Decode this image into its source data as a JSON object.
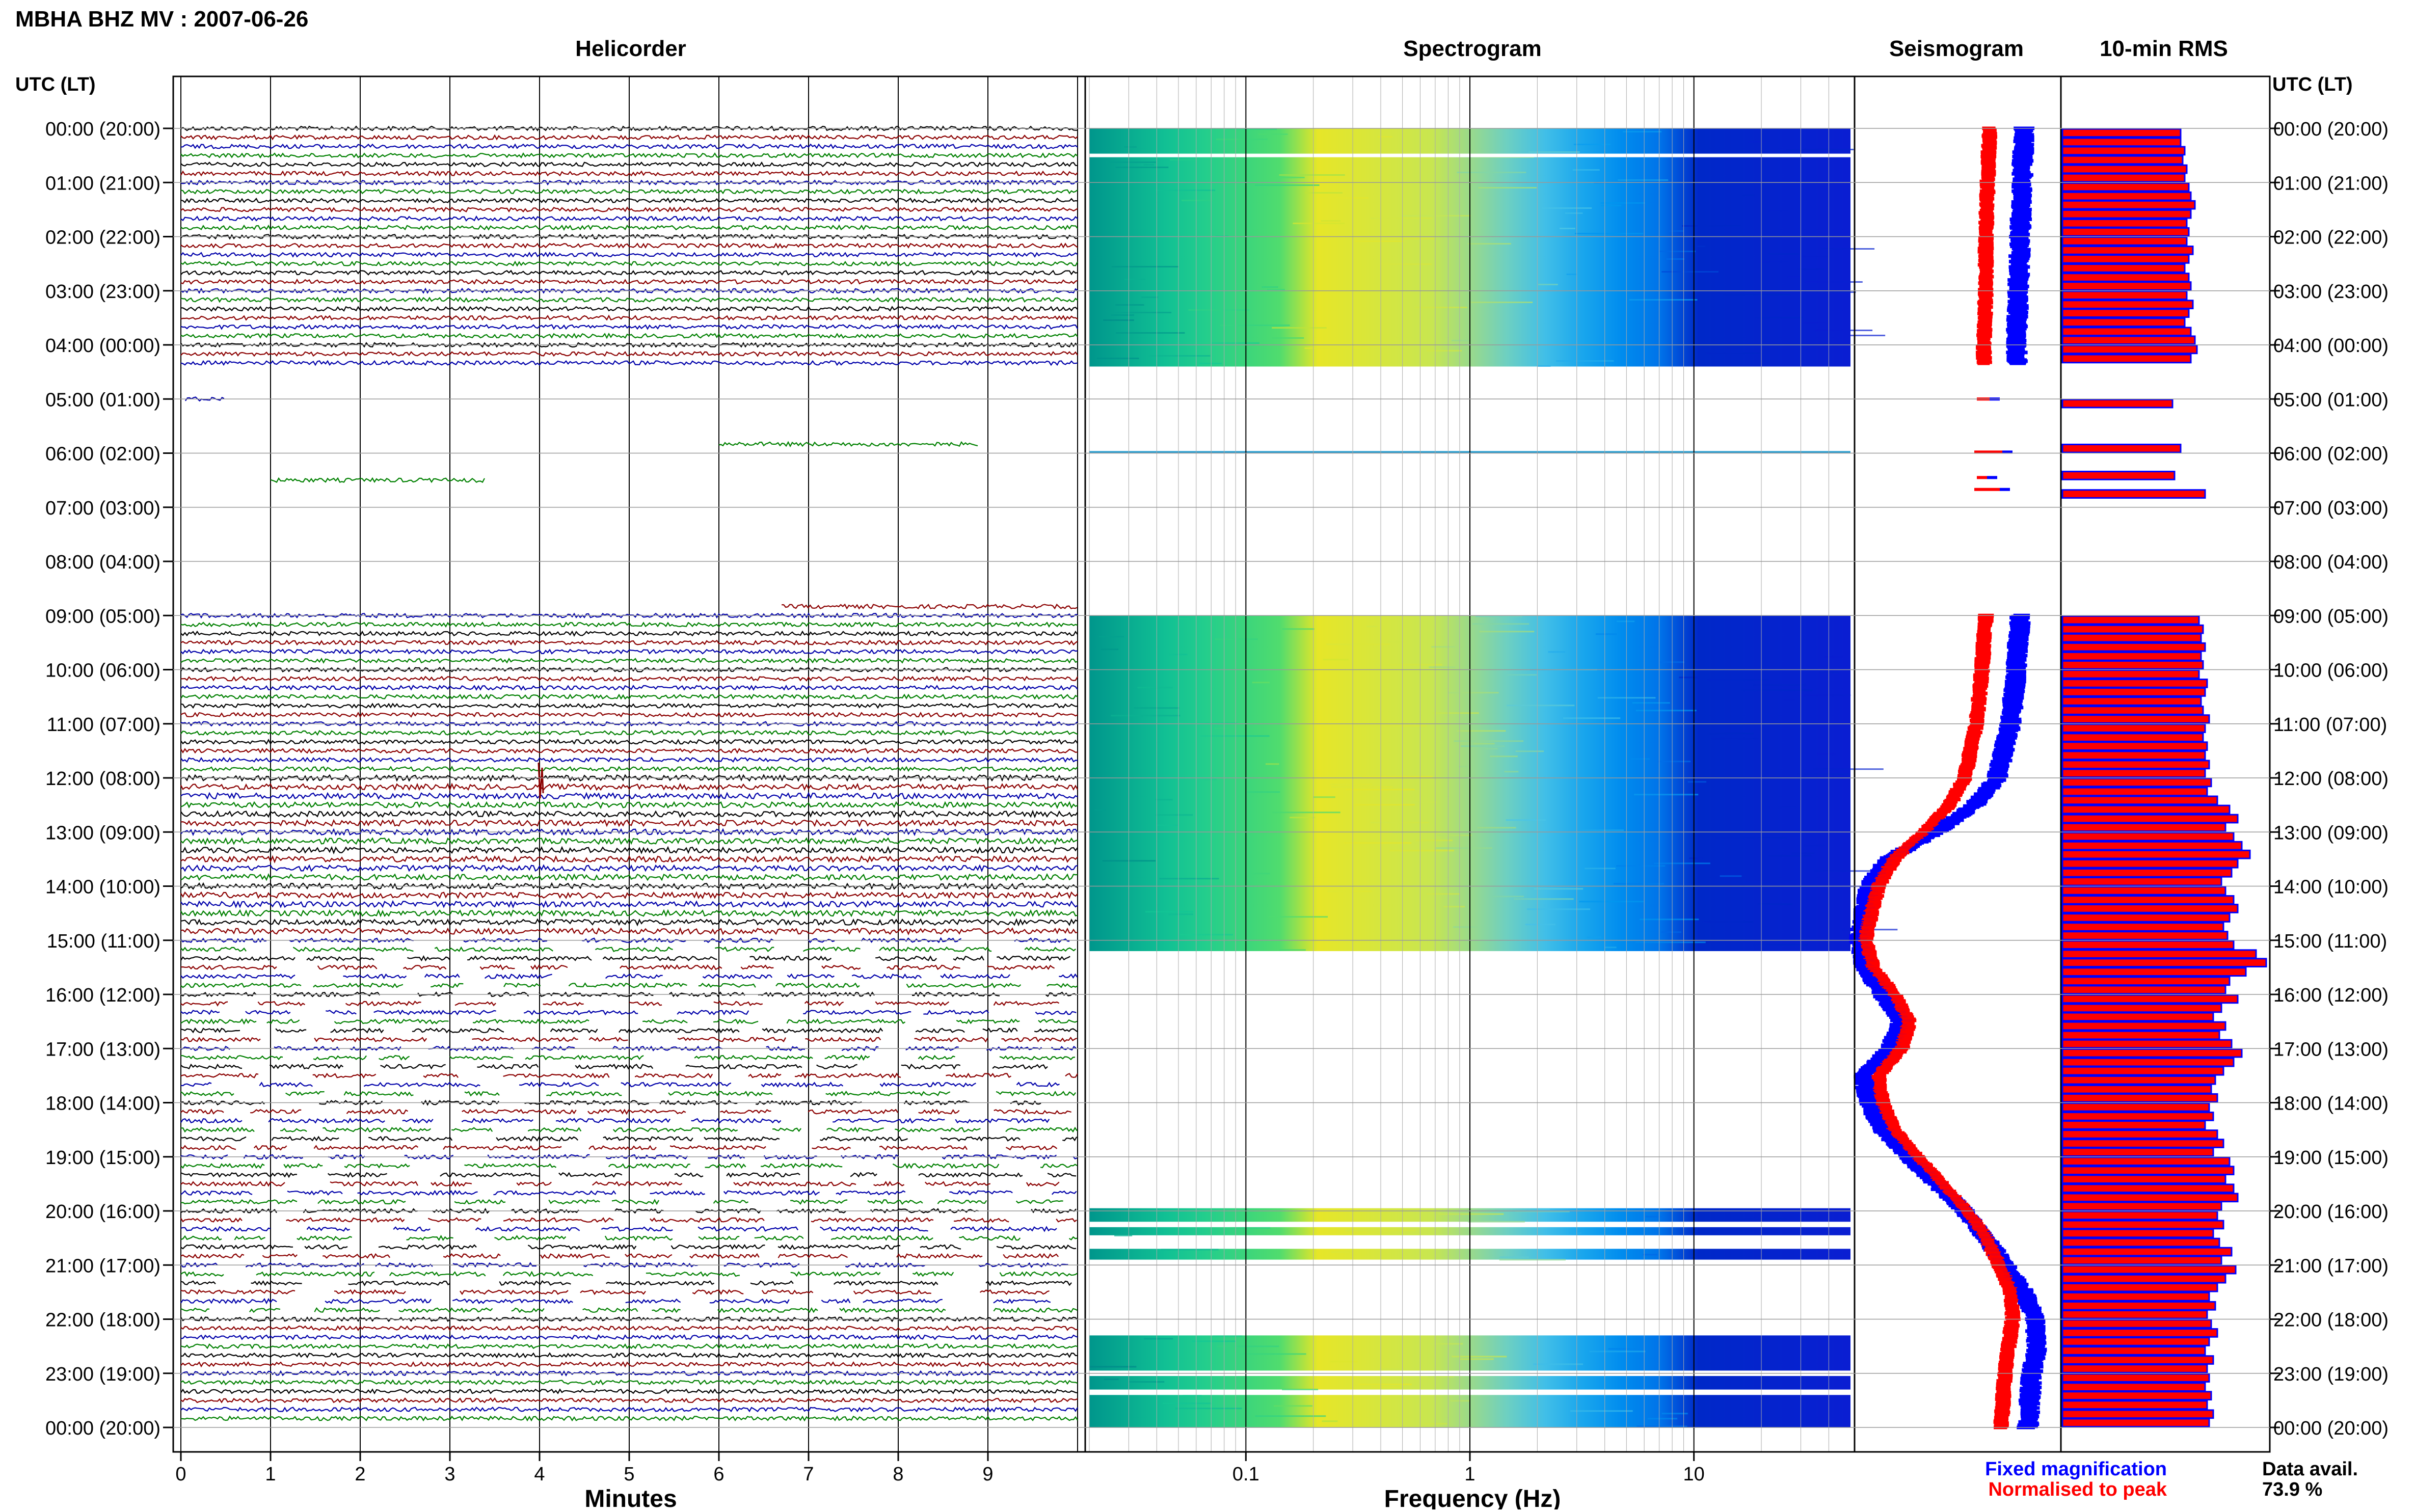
{
  "header": {
    "station_title": "MBHA BHZ MV : 2007-06-26",
    "utc_label": "UTC (LT)",
    "utc_label_right": "UTC (LT)"
  },
  "panels": {
    "helicorder": "Helicorder",
    "spectrogram": "Spectrogram",
    "seismogram": "Seismogram",
    "rms": "10-min RMS"
  },
  "axes": {
    "minutes_label": "Minutes",
    "frequency_label": "Frequency (Hz)",
    "minute_ticks": [
      "0",
      "1",
      "2",
      "3",
      "4",
      "5",
      "6",
      "7",
      "8",
      "9"
    ],
    "frequency_ticks": [
      "0.1",
      "1",
      "10"
    ]
  },
  "time_labels": [
    "00:00 (20:00)",
    "01:00 (21:00)",
    "02:00 (22:00)",
    "03:00 (23:00)",
    "04:00 (00:00)",
    "05:00 (01:00)",
    "06:00 (02:00)",
    "07:00 (03:00)",
    "08:00 (04:00)",
    "09:00 (05:00)",
    "10:00 (06:00)",
    "11:00 (07:00)",
    "12:00 (08:00)",
    "13:00 (09:00)",
    "14:00 (10:00)",
    "15:00 (11:00)",
    "16:00 (12:00)",
    "17:00 (13:00)",
    "18:00 (14:00)",
    "19:00 (15:00)",
    "20:00 (16:00)",
    "21:00 (17:00)",
    "22:00 (18:00)",
    "23:00 (19:00)",
    "00:00 (20:00)"
  ],
  "legend": {
    "fixed": "Fixed magnification",
    "normalised": "Normalised to peak",
    "fixed_color": "#0000ff",
    "normalised_color": "#ff0000"
  },
  "data_availability": {
    "label": "Data avail.",
    "value": "73.9 %"
  },
  "colors": {
    "trace_cycle": [
      "#000000",
      "#8b0000",
      "#0000aa",
      "#008000"
    ],
    "rms_fill": "#ff0000",
    "rms_edge": "#0000ff"
  },
  "chart_data": {
    "type": "heatmap",
    "helicorder": {
      "minutes_per_line": 10,
      "xlabel": "Minutes",
      "xlim": [
        0,
        10
      ],
      "coverage_notes": "continuous 00:00-04:20 UTC and 09:00-24:00 UTC; sparse 04:20-09:00; gappy traces 15:00-22:00"
    },
    "spectrogram": {
      "xlabel": "Frequency (Hz)",
      "xscale": "log",
      "xlim": [
        0.02,
        50
      ],
      "data_segments_utc_hours": [
        [
          0,
          4.4
        ],
        [
          9,
          15.2
        ],
        [
          19.95,
          20.2
        ],
        [
          20.3,
          20.45
        ],
        [
          20.7,
          20.9
        ],
        [
          22.3,
          22.95
        ],
        [
          23.05,
          23.3
        ],
        [
          23.4,
          24
        ]
      ]
    },
    "rms_10min": {
      "units": "relative",
      "intervals": [
        {
          "t": 0.0,
          "v": 0.58
        },
        {
          "t": 0.17,
          "v": 0.58
        },
        {
          "t": 0.33,
          "v": 0.6
        },
        {
          "t": 0.5,
          "v": 0.59
        },
        {
          "t": 0.67,
          "v": 0.61
        },
        {
          "t": 0.83,
          "v": 0.6
        },
        {
          "t": 1.0,
          "v": 0.62
        },
        {
          "t": 1.17,
          "v": 0.63
        },
        {
          "t": 1.33,
          "v": 0.65
        },
        {
          "t": 1.5,
          "v": 0.63
        },
        {
          "t": 1.67,
          "v": 0.61
        },
        {
          "t": 1.83,
          "v": 0.62
        },
        {
          "t": 2.0,
          "v": 0.61
        },
        {
          "t": 2.17,
          "v": 0.64
        },
        {
          "t": 2.33,
          "v": 0.62
        },
        {
          "t": 2.5,
          "v": 0.6
        },
        {
          "t": 2.67,
          "v": 0.62
        },
        {
          "t": 2.83,
          "v": 0.63
        },
        {
          "t": 3.0,
          "v": 0.61
        },
        {
          "t": 3.17,
          "v": 0.64
        },
        {
          "t": 3.33,
          "v": 0.62
        },
        {
          "t": 3.5,
          "v": 0.6
        },
        {
          "t": 3.67,
          "v": 0.63
        },
        {
          "t": 3.83,
          "v": 0.65
        },
        {
          "t": 4.0,
          "v": 0.66
        },
        {
          "t": 4.17,
          "v": 0.63
        },
        {
          "t": 5.0,
          "v": 0.54
        },
        {
          "t": 5.83,
          "v": 0.58
        },
        {
          "t": 6.33,
          "v": 0.55
        },
        {
          "t": 6.67,
          "v": 0.7
        },
        {
          "t": 9.0,
          "v": 0.67
        },
        {
          "t": 9.17,
          "v": 0.69
        },
        {
          "t": 9.33,
          "v": 0.68
        },
        {
          "t": 9.5,
          "v": 0.7
        },
        {
          "t": 9.67,
          "v": 0.68
        },
        {
          "t": 9.83,
          "v": 0.69
        },
        {
          "t": 10.0,
          "v": 0.67
        },
        {
          "t": 10.17,
          "v": 0.71
        },
        {
          "t": 10.33,
          "v": 0.7
        },
        {
          "t": 10.5,
          "v": 0.68
        },
        {
          "t": 10.67,
          "v": 0.69
        },
        {
          "t": 10.83,
          "v": 0.72
        },
        {
          "t": 11.0,
          "v": 0.7
        },
        {
          "t": 11.17,
          "v": 0.69
        },
        {
          "t": 11.33,
          "v": 0.71
        },
        {
          "t": 11.5,
          "v": 0.7
        },
        {
          "t": 11.67,
          "v": 0.72
        },
        {
          "t": 11.83,
          "v": 0.7
        },
        {
          "t": 12.0,
          "v": 0.73
        },
        {
          "t": 12.17,
          "v": 0.71
        },
        {
          "t": 12.33,
          "v": 0.76
        },
        {
          "t": 12.5,
          "v": 0.82
        },
        {
          "t": 12.67,
          "v": 0.86
        },
        {
          "t": 12.83,
          "v": 0.8
        },
        {
          "t": 13.0,
          "v": 0.84
        },
        {
          "t": 13.17,
          "v": 0.88
        },
        {
          "t": 13.33,
          "v": 0.92
        },
        {
          "t": 13.5,
          "v": 0.86
        },
        {
          "t": 13.67,
          "v": 0.83
        },
        {
          "t": 13.83,
          "v": 0.78
        },
        {
          "t": 14.0,
          "v": 0.8
        },
        {
          "t": 14.17,
          "v": 0.84
        },
        {
          "t": 14.33,
          "v": 0.86
        },
        {
          "t": 14.5,
          "v": 0.82
        },
        {
          "t": 14.67,
          "v": 0.79
        },
        {
          "t": 14.83,
          "v": 0.81
        },
        {
          "t": 15.0,
          "v": 0.84
        },
        {
          "t": 15.17,
          "v": 0.95
        },
        {
          "t": 15.33,
          "v": 1.0
        },
        {
          "t": 15.5,
          "v": 0.9
        },
        {
          "t": 15.67,
          "v": 0.82
        },
        {
          "t": 15.83,
          "v": 0.8
        },
        {
          "t": 16.0,
          "v": 0.86
        },
        {
          "t": 16.17,
          "v": 0.78
        },
        {
          "t": 16.33,
          "v": 0.74
        },
        {
          "t": 16.5,
          "v": 0.8
        },
        {
          "t": 16.67,
          "v": 0.77
        },
        {
          "t": 16.83,
          "v": 0.83
        },
        {
          "t": 17.0,
          "v": 0.88
        },
        {
          "t": 17.17,
          "v": 0.84
        },
        {
          "t": 17.33,
          "v": 0.79
        },
        {
          "t": 17.5,
          "v": 0.75
        },
        {
          "t": 17.67,
          "v": 0.73
        },
        {
          "t": 17.83,
          "v": 0.76
        },
        {
          "t": 18.0,
          "v": 0.72
        },
        {
          "t": 18.17,
          "v": 0.74
        },
        {
          "t": 18.33,
          "v": 0.7
        },
        {
          "t": 18.5,
          "v": 0.76
        },
        {
          "t": 18.67,
          "v": 0.79
        },
        {
          "t": 18.83,
          "v": 0.74
        },
        {
          "t": 19.0,
          "v": 0.82
        },
        {
          "t": 19.17,
          "v": 0.84
        },
        {
          "t": 19.33,
          "v": 0.8
        },
        {
          "t": 19.5,
          "v": 0.84
        },
        {
          "t": 19.67,
          "v": 0.86
        },
        {
          "t": 19.83,
          "v": 0.78
        },
        {
          "t": 20.0,
          "v": 0.76
        },
        {
          "t": 20.17,
          "v": 0.79
        },
        {
          "t": 20.33,
          "v": 0.74
        },
        {
          "t": 20.5,
          "v": 0.77
        },
        {
          "t": 20.67,
          "v": 0.83
        },
        {
          "t": 20.83,
          "v": 0.78
        },
        {
          "t": 21.0,
          "v": 0.85
        },
        {
          "t": 21.17,
          "v": 0.8
        },
        {
          "t": 21.33,
          "v": 0.76
        },
        {
          "t": 21.5,
          "v": 0.72
        },
        {
          "t": 21.67,
          "v": 0.75
        },
        {
          "t": 21.83,
          "v": 0.71
        },
        {
          "t": 22.0,
          "v": 0.73
        },
        {
          "t": 22.17,
          "v": 0.76
        },
        {
          "t": 22.33,
          "v": 0.72
        },
        {
          "t": 22.5,
          "v": 0.7
        },
        {
          "t": 22.67,
          "v": 0.74
        },
        {
          "t": 22.83,
          "v": 0.71
        },
        {
          "t": 23.0,
          "v": 0.72
        },
        {
          "t": 23.17,
          "v": 0.7
        },
        {
          "t": 23.33,
          "v": 0.73
        },
        {
          "t": 23.5,
          "v": 0.71
        },
        {
          "t": 23.67,
          "v": 0.74
        },
        {
          "t": 23.83,
          "v": 0.72
        }
      ]
    },
    "seismogram_envelope": {
      "description": "low-frequency trend per hour, normalised",
      "hours": [
        0,
        1,
        2,
        3,
        4,
        9,
        10,
        11,
        12,
        12.5,
        13,
        13.5,
        14,
        14.5,
        15,
        15.5,
        16,
        16.5,
        17,
        17.5,
        18,
        18.5,
        19,
        19.5,
        20,
        20.5,
        21,
        21.5,
        22,
        22.5,
        23,
        23.5,
        24
      ],
      "fixed": [
        0.86,
        0.85,
        0.84,
        0.83,
        0.82,
        0.84,
        0.82,
        0.79,
        0.72,
        0.6,
        0.4,
        0.15,
        0.05,
        0.02,
        0.0,
        0.03,
        0.12,
        0.22,
        0.16,
        0.02,
        0.05,
        0.12,
        0.25,
        0.4,
        0.55,
        0.66,
        0.76,
        0.86,
        0.92,
        0.93,
        0.9,
        0.89,
        0.88
      ],
      "normalised": [
        0.68,
        0.67,
        0.66,
        0.66,
        0.65,
        0.66,
        0.64,
        0.61,
        0.55,
        0.47,
        0.34,
        0.18,
        0.1,
        0.06,
        0.03,
        0.07,
        0.18,
        0.26,
        0.22,
        0.1,
        0.12,
        0.18,
        0.3,
        0.43,
        0.56,
        0.66,
        0.73,
        0.79,
        0.8,
        0.78,
        0.76,
        0.75,
        0.74
      ]
    }
  }
}
